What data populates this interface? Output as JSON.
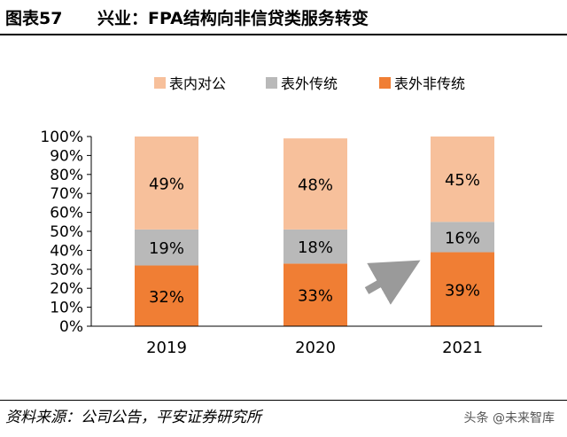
{
  "header": {
    "figure_label": "图表57",
    "title": "兴业：FPA结构向非信贷类服务转变"
  },
  "chart_data": {
    "type": "bar",
    "stacked": true,
    "categories": [
      "2019",
      "2020",
      "2021"
    ],
    "series": [
      {
        "name": "表外非传统",
        "values": [
          32,
          33,
          39
        ],
        "color": "#F07E34"
      },
      {
        "name": "表外传统",
        "values": [
          19,
          18,
          16
        ],
        "color": "#B9B9B9"
      },
      {
        "name": "表内对公",
        "values": [
          49,
          48,
          45
        ],
        "color": "#F7C09B"
      }
    ],
    "legend_order": [
      "表内对公",
      "表外传统",
      "表外非传统"
    ],
    "yticks": [
      "0%",
      "10%",
      "20%",
      "30%",
      "40%",
      "50%",
      "60%",
      "70%",
      "80%",
      "90%",
      "100%"
    ],
    "ylim": [
      0,
      100
    ],
    "legend_position": "top",
    "grid": false,
    "annotation_arrow": "gray arrow pointing up-right between 2020 and 2021"
  },
  "footer": {
    "source": "资料来源：公司公告，平安证券研究所",
    "watermark": "头条 @未来智库"
  }
}
